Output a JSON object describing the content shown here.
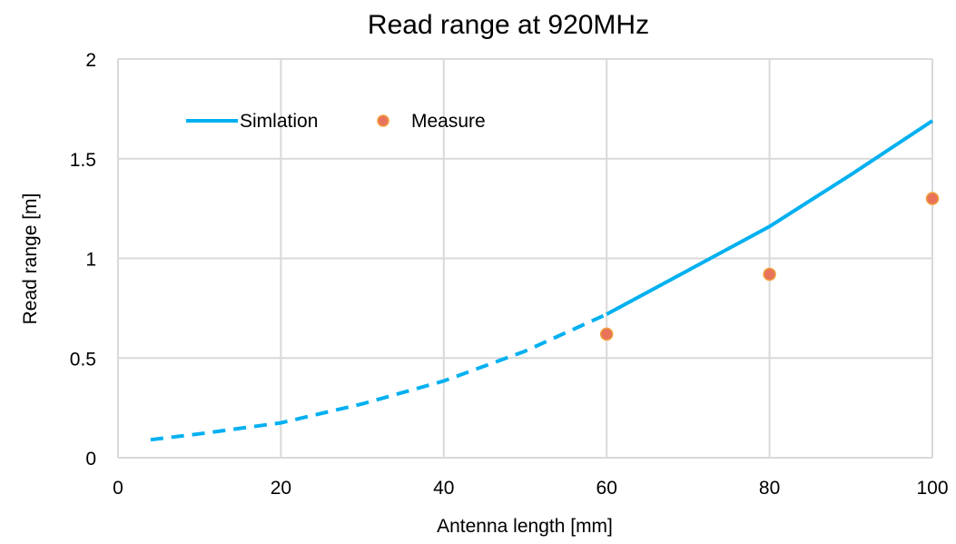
{
  "chart_data": {
    "type": "line",
    "title": "Read range at 920MHz",
    "xlabel": "Antenna length [mm]",
    "ylabel": "Read range [m]",
    "xlim": [
      0,
      100
    ],
    "ylim": [
      0,
      2
    ],
    "x_ticks": [
      0,
      20,
      40,
      60,
      80,
      100
    ],
    "y_ticks": [
      0,
      0.5,
      1,
      1.5,
      2
    ],
    "x_tick_labels": [
      "0",
      "20",
      "40",
      "60",
      "80",
      "100"
    ],
    "y_tick_labels": [
      "0",
      "0.5",
      "1",
      "1.5",
      "2"
    ],
    "grid": true,
    "legend_position": "top-left",
    "series": [
      {
        "name": "Simlation",
        "kind": "line",
        "color": "#00b0f0",
        "segments": [
          {
            "style": "dashed",
            "points": [
              [
                4,
                0.09
              ],
              [
                10,
                0.12
              ],
              [
                20,
                0.175
              ],
              [
                30,
                0.27
              ],
              [
                40,
                0.385
              ],
              [
                50,
                0.535
              ],
              [
                60,
                0.72
              ]
            ]
          },
          {
            "style": "solid",
            "points": [
              [
                60,
                0.72
              ],
              [
                70,
                0.94
              ],
              [
                80,
                1.16
              ],
              [
                90,
                1.42
              ],
              [
                100,
                1.69
              ]
            ]
          }
        ]
      },
      {
        "name": "Measure",
        "kind": "scatter",
        "color": "#e8735a",
        "edge_color": "#f0a03a",
        "points": [
          [
            60,
            0.62
          ],
          [
            80,
            0.92
          ],
          [
            100,
            1.3
          ]
        ]
      }
    ]
  }
}
